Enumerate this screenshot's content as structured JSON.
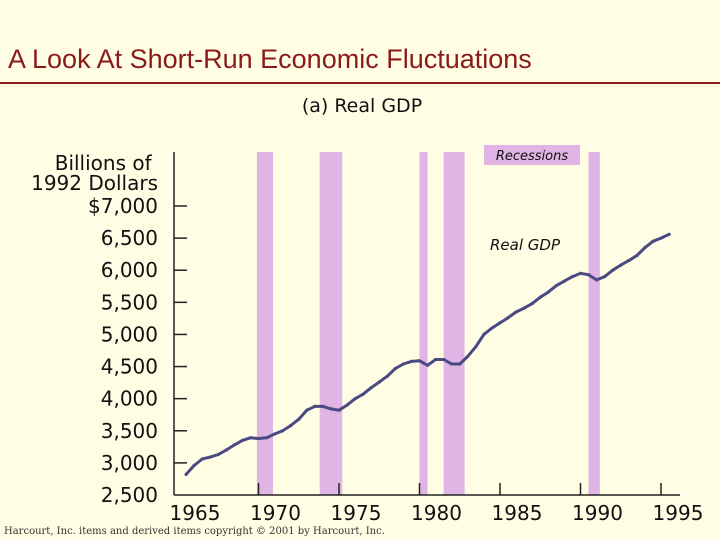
{
  "slide": {
    "title": "A Look At Short-Run Economic Fluctuations",
    "footer": "Harcourt, Inc. items and derived items copyright © 2001 by Harcourt, Inc."
  },
  "colors": {
    "title": "#8B1A1A",
    "background": "#FFFDE4",
    "recession": "#E0B4E4",
    "line": "#4A4A82",
    "text": "#111111"
  },
  "chart_data": {
    "type": "line",
    "title": "(a) Real GDP",
    "ylabel": "Billions of 1992 Dollars",
    "xlim": [
      1965,
      1995
    ],
    "ylim": [
      2500,
      7000
    ],
    "y_tick_labels": [
      "$7,000",
      "6,500",
      "6,000",
      "5,500",
      "5,000",
      "4,500",
      "4,000",
      "3,500",
      "3,000",
      "2,500"
    ],
    "y_tick_values": [
      7000,
      6500,
      6000,
      5500,
      5000,
      4500,
      4000,
      3500,
      3000,
      2500
    ],
    "x_tick_labels": [
      "1965",
      "1970",
      "1975",
      "1980",
      "1985",
      "1990",
      "1995"
    ],
    "x_tick_values": [
      1965,
      1970,
      1975,
      1980,
      1985,
      1990,
      1995
    ],
    "recession_label": "Recessions",
    "series_label": "Real GDP",
    "recessions": [
      {
        "start": 1969.9,
        "end": 1970.9
      },
      {
        "start": 1973.8,
        "end": 1975.2
      },
      {
        "start": 1980.0,
        "end": 1980.5
      },
      {
        "start": 1981.5,
        "end": 1982.8
      },
      {
        "start": 1990.5,
        "end": 1991.2
      }
    ],
    "x": [
      1965.5,
      1966.0,
      1966.5,
      1967.0,
      1967.5,
      1968.0,
      1968.5,
      1969.0,
      1969.5,
      1970.0,
      1970.5,
      1971.0,
      1971.5,
      1972.0,
      1972.5,
      1973.0,
      1973.5,
      1974.0,
      1974.5,
      1975.0,
      1975.5,
      1976.0,
      1976.5,
      1977.0,
      1977.5,
      1978.0,
      1978.5,
      1979.0,
      1979.5,
      1980.0,
      1980.5,
      1981.0,
      1981.5,
      1982.0,
      1982.5,
      1983.0,
      1983.5,
      1984.0,
      1984.5,
      1985.0,
      1985.5,
      1986.0,
      1986.5,
      1987.0,
      1987.5,
      1988.0,
      1988.5,
      1989.0,
      1989.5,
      1990.0,
      1990.5,
      1991.0,
      1991.5,
      1992.0,
      1992.5,
      1993.0,
      1993.5,
      1994.0,
      1994.5,
      1995.0,
      1995.5
    ],
    "values": [
      2820,
      2960,
      3060,
      3090,
      3130,
      3200,
      3280,
      3350,
      3390,
      3380,
      3390,
      3450,
      3500,
      3580,
      3680,
      3820,
      3880,
      3880,
      3840,
      3820,
      3900,
      4000,
      4070,
      4170,
      4260,
      4350,
      4470,
      4540,
      4580,
      4590,
      4520,
      4610,
      4610,
      4540,
      4540,
      4660,
      4810,
      5000,
      5100,
      5180,
      5260,
      5350,
      5410,
      5480,
      5580,
      5660,
      5760,
      5830,
      5900,
      5950,
      5930,
      5850,
      5900,
      6000,
      6080,
      6150,
      6230,
      6350,
      6450,
      6500,
      6560
    ]
  }
}
